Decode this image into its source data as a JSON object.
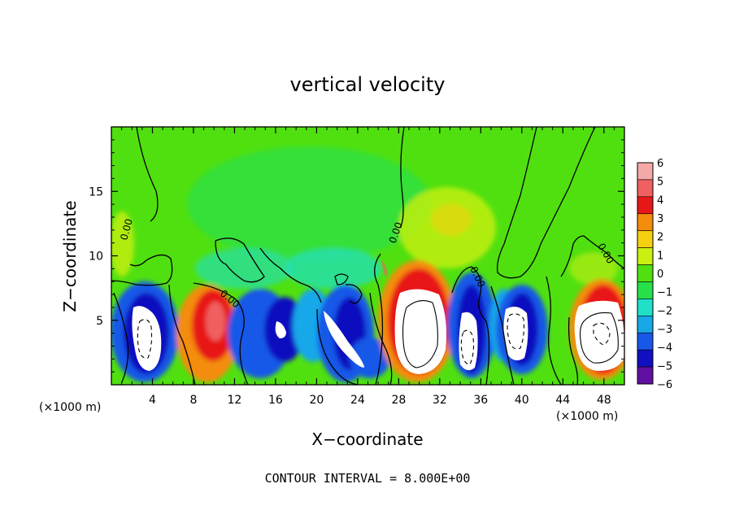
{
  "chart_data": {
    "type": "heatmap",
    "title": "vertical velocity",
    "xlabel": "X−coordinate",
    "ylabel": "Z−coordinate",
    "x_units": "(×1000 m)",
    "x_units_right": "(×1000 m)",
    "xlim": [
      0,
      50
    ],
    "ylim": [
      0,
      20
    ],
    "x_ticks": [
      4,
      8,
      12,
      16,
      20,
      24,
      28,
      32,
      36,
      40,
      44,
      48
    ],
    "x_tick_labels": [
      "4",
      "8",
      "12",
      "16",
      "20",
      "24",
      "28",
      "32",
      "36",
      "40",
      "44",
      "48"
    ],
    "y_ticks": [
      5,
      10,
      15
    ],
    "y_tick_labels": [
      "5",
      "10",
      "15"
    ],
    "footer": "CONTOUR INTERVAL = 8.000E+00",
    "contour_label": "0.00",
    "colorbar": {
      "levels": [
        6,
        5,
        4,
        3,
        2,
        1,
        0,
        -1,
        -2,
        -3,
        -4,
        -5,
        -6
      ],
      "labels": [
        "6",
        "5",
        "4",
        "3",
        "2",
        "1",
        "0",
        "−1",
        "−2",
        "−3",
        "−4",
        "−5",
        "−6"
      ],
      "colors": [
        "#f4a8a8",
        "#f06060",
        "#e81818",
        "#f48c0c",
        "#f4d010",
        "#c8f010",
        "#50e010",
        "#28e048",
        "#20e0c8",
        "#18a8e8",
        "#1858e8",
        "#1010c0",
        "#6010a0"
      ]
    },
    "cells": [
      {
        "x": 5,
        "z": 4,
        "w": -6
      },
      {
        "x": 10,
        "z": 5,
        "w": 4
      },
      {
        "x": 13,
        "z": 3,
        "w": -4
      },
      {
        "x": 16,
        "z": 4,
        "w": -5
      },
      {
        "x": 18,
        "z": 5,
        "w": -3
      },
      {
        "x": 22,
        "z": 3,
        "w": -6
      },
      {
        "x": 25,
        "z": 2,
        "w": -3
      },
      {
        "x": 30,
        "z": 5,
        "w": 6
      },
      {
        "x": 34,
        "z": 4,
        "w": -6
      },
      {
        "x": 39,
        "z": 4,
        "w": -6
      },
      {
        "x": 48,
        "z": 4,
        "w": 6
      },
      {
        "x": 32,
        "z": 12,
        "w": 2
      },
      {
        "x": 1,
        "z": 9,
        "w": 2
      },
      {
        "x": 20,
        "z": 10,
        "w": -2
      }
    ]
  }
}
